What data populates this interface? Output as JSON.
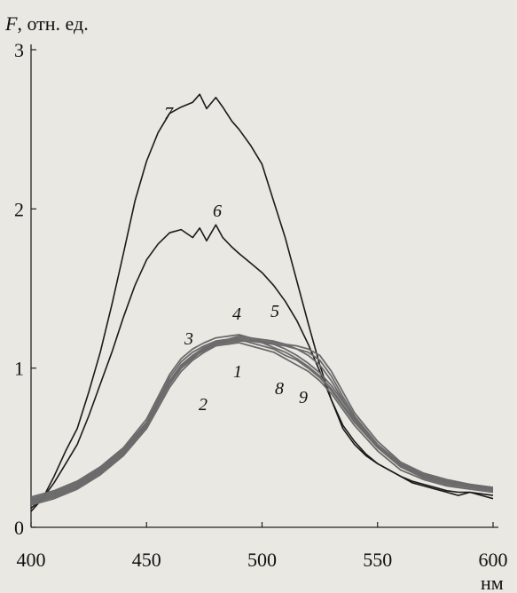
{
  "chart_data": {
    "type": "line",
    "ylabel_var": "F",
    "ylabel_unit": ", отн. ед.",
    "xlabel": "нм",
    "xlim": [
      400,
      600
    ],
    "ylim": [
      0,
      3
    ],
    "xticks": [
      400,
      450,
      500,
      550,
      600
    ],
    "yticks": [
      0,
      1,
      2,
      3
    ],
    "grid": false,
    "colors": {
      "dark": "#1a1a1a",
      "gray": "#6b6b6b"
    },
    "series": [
      {
        "name": "7",
        "color": "dark",
        "x": [
          400,
          405,
          410,
          415,
          420,
          425,
          430,
          435,
          440,
          445,
          450,
          455,
          460,
          465,
          470,
          473,
          476,
          480,
          483,
          487,
          490,
          495,
          500,
          505,
          510,
          515,
          520,
          525,
          530,
          535,
          540,
          545,
          550,
          555,
          560,
          565,
          570,
          575,
          580,
          585,
          590,
          595,
          600
        ],
        "y": [
          0.1,
          0.18,
          0.32,
          0.48,
          0.62,
          0.85,
          1.1,
          1.4,
          1.72,
          2.05,
          2.3,
          2.48,
          2.6,
          2.64,
          2.67,
          2.72,
          2.63,
          2.7,
          2.64,
          2.55,
          2.5,
          2.4,
          2.28,
          2.05,
          1.82,
          1.55,
          1.28,
          1.02,
          0.8,
          0.62,
          0.52,
          0.45,
          0.4,
          0.36,
          0.32,
          0.28,
          0.26,
          0.24,
          0.22,
          0.2,
          0.22,
          0.2,
          0.18
        ]
      },
      {
        "name": "6",
        "color": "dark",
        "x": [
          400,
          405,
          410,
          415,
          420,
          425,
          430,
          435,
          440,
          445,
          450,
          455,
          460,
          465,
          470,
          473,
          476,
          480,
          483,
          487,
          490,
          495,
          500,
          505,
          510,
          515,
          520,
          525,
          530,
          535,
          540,
          545,
          550,
          555,
          560,
          565,
          570,
          575,
          580,
          585,
          590,
          595,
          600
        ],
        "y": [
          0.12,
          0.18,
          0.28,
          0.4,
          0.52,
          0.7,
          0.9,
          1.1,
          1.32,
          1.52,
          1.68,
          1.78,
          1.85,
          1.87,
          1.82,
          1.88,
          1.8,
          1.9,
          1.82,
          1.76,
          1.72,
          1.66,
          1.6,
          1.52,
          1.42,
          1.3,
          1.15,
          0.98,
          0.8,
          0.64,
          0.54,
          0.46,
          0.4,
          0.36,
          0.32,
          0.29,
          0.27,
          0.25,
          0.23,
          0.22,
          0.22,
          0.21,
          0.2
        ]
      },
      {
        "name": "1",
        "color": "gray",
        "x": [
          400,
          410,
          420,
          430,
          440,
          450,
          455,
          460,
          465,
          470,
          475,
          480,
          485,
          490,
          495,
          500,
          505,
          510,
          515,
          520,
          525,
          530,
          535,
          540,
          550,
          560,
          570,
          580,
          590,
          600
        ],
        "y": [
          0.14,
          0.18,
          0.24,
          0.33,
          0.45,
          0.62,
          0.75,
          0.88,
          0.98,
          1.05,
          1.1,
          1.14,
          1.15,
          1.16,
          1.14,
          1.12,
          1.1,
          1.06,
          1.02,
          0.98,
          0.92,
          0.84,
          0.74,
          0.64,
          0.48,
          0.36,
          0.3,
          0.26,
          0.24,
          0.22
        ]
      },
      {
        "name": "2",
        "color": "gray",
        "x": [
          400,
          410,
          420,
          430,
          440,
          450,
          455,
          460,
          465,
          470,
          475,
          480,
          485,
          490,
          495,
          500,
          505,
          510,
          515,
          520,
          525,
          530,
          535,
          540,
          550,
          560,
          570,
          580,
          590,
          600
        ],
        "y": [
          0.16,
          0.2,
          0.26,
          0.35,
          0.47,
          0.64,
          0.78,
          0.9,
          1.0,
          1.06,
          1.12,
          1.15,
          1.17,
          1.18,
          1.16,
          1.14,
          1.12,
          1.08,
          1.05,
          1.0,
          0.94,
          0.86,
          0.76,
          0.66,
          0.5,
          0.38,
          0.31,
          0.27,
          0.25,
          0.23
        ]
      },
      {
        "name": "3",
        "color": "gray",
        "x": [
          400,
          410,
          420,
          430,
          440,
          450,
          455,
          460,
          465,
          470,
          475,
          480,
          485,
          490,
          495,
          500,
          505,
          510,
          515,
          520,
          525,
          530,
          535,
          540,
          550,
          560,
          570,
          580,
          590,
          600
        ],
        "y": [
          0.18,
          0.22,
          0.28,
          0.37,
          0.49,
          0.66,
          0.8,
          0.94,
          1.04,
          1.1,
          1.14,
          1.17,
          1.18,
          1.19,
          1.18,
          1.16,
          1.13,
          1.1,
          1.06,
          1.01,
          0.95,
          0.87,
          0.77,
          0.67,
          0.51,
          0.39,
          0.32,
          0.28,
          0.26,
          0.24
        ]
      },
      {
        "name": "4",
        "color": "gray",
        "x": [
          400,
          410,
          420,
          430,
          440,
          450,
          455,
          460,
          465,
          470,
          475,
          480,
          485,
          490,
          495,
          500,
          505,
          510,
          515,
          520,
          525,
          530,
          535,
          540,
          550,
          560,
          570,
          580,
          590,
          600
        ],
        "y": [
          0.19,
          0.23,
          0.29,
          0.38,
          0.5,
          0.68,
          0.82,
          0.96,
          1.06,
          1.12,
          1.16,
          1.19,
          1.2,
          1.21,
          1.19,
          1.17,
          1.15,
          1.12,
          1.08,
          1.03,
          0.97,
          0.89,
          0.79,
          0.69,
          0.52,
          0.4,
          0.33,
          0.29,
          0.27,
          0.25
        ]
      },
      {
        "name": "5",
        "color": "gray",
        "x": [
          400,
          410,
          420,
          430,
          440,
          450,
          455,
          460,
          465,
          470,
          475,
          480,
          485,
          490,
          495,
          500,
          505,
          510,
          515,
          520,
          525,
          530,
          535,
          540,
          550,
          560,
          570,
          580,
          590,
          600
        ],
        "y": [
          0.17,
          0.21,
          0.27,
          0.36,
          0.48,
          0.65,
          0.79,
          0.92,
          1.02,
          1.08,
          1.13,
          1.16,
          1.18,
          1.2,
          1.19,
          1.18,
          1.17,
          1.15,
          1.12,
          1.08,
          1.02,
          0.92,
          0.8,
          0.68,
          0.51,
          0.39,
          0.32,
          0.28,
          0.26,
          0.24
        ]
      },
      {
        "name": "8",
        "color": "gray",
        "x": [
          400,
          410,
          420,
          430,
          440,
          450,
          455,
          460,
          465,
          470,
          475,
          480,
          485,
          490,
          495,
          500,
          505,
          510,
          515,
          520,
          525,
          530,
          535,
          540,
          550,
          560,
          570,
          580,
          590,
          600
        ],
        "y": [
          0.15,
          0.19,
          0.25,
          0.34,
          0.46,
          0.63,
          0.77,
          0.9,
          1.0,
          1.07,
          1.11,
          1.15,
          1.16,
          1.17,
          1.17,
          1.16,
          1.15,
          1.14,
          1.12,
          1.1,
          1.05,
          0.95,
          0.82,
          0.7,
          0.52,
          0.4,
          0.33,
          0.29,
          0.26,
          0.24
        ]
      },
      {
        "name": "9",
        "color": "gray",
        "x": [
          400,
          410,
          420,
          430,
          440,
          450,
          455,
          460,
          465,
          470,
          475,
          480,
          485,
          490,
          495,
          500,
          505,
          510,
          515,
          520,
          525,
          530,
          535,
          540,
          550,
          560,
          570,
          580,
          590,
          600
        ],
        "y": [
          0.16,
          0.2,
          0.26,
          0.35,
          0.47,
          0.64,
          0.78,
          0.91,
          1.01,
          1.08,
          1.12,
          1.15,
          1.17,
          1.18,
          1.17,
          1.17,
          1.16,
          1.15,
          1.14,
          1.12,
          1.08,
          0.98,
          0.85,
          0.72,
          0.54,
          0.41,
          0.34,
          0.3,
          0.27,
          0.25
        ]
      }
    ],
    "annotations": [
      {
        "text": "7",
        "near": "7"
      },
      {
        "text": "6",
        "near": "6"
      },
      {
        "text": "5",
        "near": "5"
      },
      {
        "text": "4",
        "near": "4"
      },
      {
        "text": "3",
        "near": "3"
      },
      {
        "text": "1",
        "near": "1"
      },
      {
        "text": "2",
        "near": "2"
      },
      {
        "text": "8",
        "near": "8"
      },
      {
        "text": "9",
        "near": "9"
      }
    ]
  }
}
